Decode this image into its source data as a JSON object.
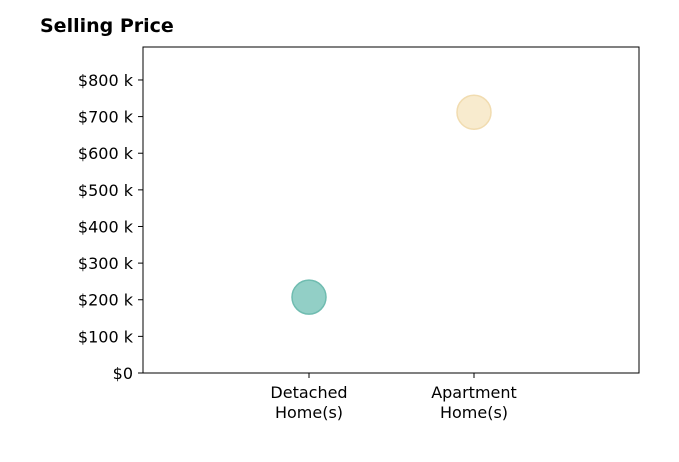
{
  "chart_data": {
    "type": "scatter",
    "title": "Selling Price",
    "xlabel": "",
    "ylabel": "",
    "categories": [
      [
        "Detached",
        "Home(s)"
      ],
      [
        "Apartment",
        "Home(s)"
      ]
    ],
    "values": [
      207,
      712
    ],
    "unit": "$ thousands",
    "ylim": [
      0,
      890
    ],
    "yticks": [
      0,
      100,
      200,
      300,
      400,
      500,
      600,
      700,
      800
    ],
    "ytick_labels": [
      "$0",
      "$100 k",
      "$200 k",
      "$300 k",
      "$400 k",
      "$500 k",
      "$600 k",
      "$700 k",
      "$800 k"
    ],
    "point_colors": [
      "#7fc7bc",
      "#f7e7c6"
    ],
    "point_edge_colors": [
      "#6fbcb0",
      "#f1dcb0"
    ],
    "grid": false,
    "legend": "none"
  }
}
